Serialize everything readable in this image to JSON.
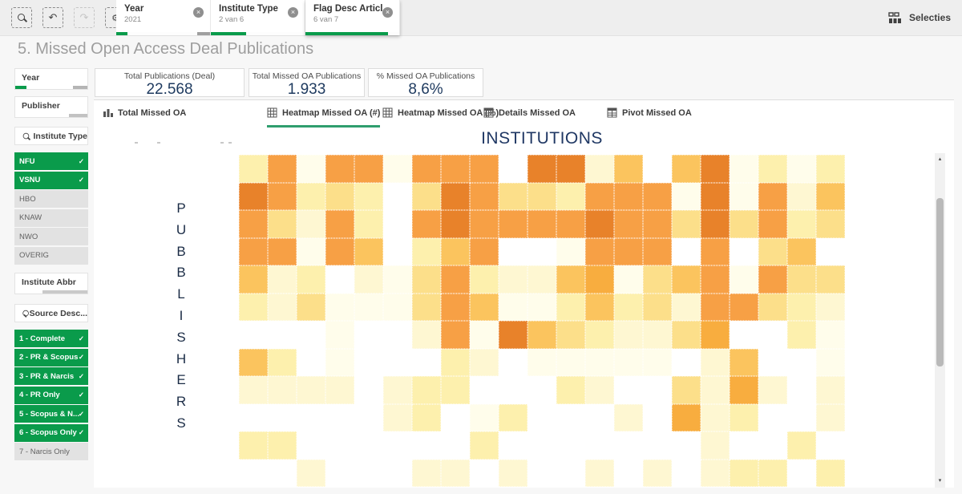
{
  "topbar": {
    "selections_label": "Selecties",
    "chips": [
      {
        "title": "Year",
        "subtitle": "2021",
        "green_pct": 12,
        "tail_pct": 14
      },
      {
        "title": "Institute Type",
        "subtitle": "2 van 6",
        "green_pct": 38,
        "tail_pct": 0
      },
      {
        "title": "Flag Desc Articl...",
        "subtitle": "6 van 7",
        "green_pct": 88,
        "tail_pct": 0
      }
    ]
  },
  "page": {
    "title": "5. Missed Open Access Deal Publications"
  },
  "kpis": [
    {
      "label": "Total Publications (Deal)",
      "value": "22.568"
    },
    {
      "label": "Total Missed OA Publications",
      "value": "1.933"
    },
    {
      "label": "% Missed OA Publications",
      "value": "8,6%"
    }
  ],
  "sidebar": {
    "year": {
      "label": "Year"
    },
    "publisher": {
      "label": "Publisher"
    },
    "institute_type": {
      "label": "Institute Type",
      "items": [
        {
          "label": "NFU",
          "selected": true
        },
        {
          "label": "VSNU",
          "selected": true
        },
        {
          "label": "HBO",
          "selected": false
        },
        {
          "label": "KNAW",
          "selected": false
        },
        {
          "label": "NWO",
          "selected": false
        },
        {
          "label": "OVERIG",
          "selected": false
        }
      ]
    },
    "institute_abbr": {
      "label": "Institute Abbr"
    },
    "source_desc": {
      "label": "Source Desc...",
      "items": [
        {
          "label": "1 - Complete",
          "selected": true
        },
        {
          "label": "2 - PR & Scopus",
          "selected": true
        },
        {
          "label": "3 - PR & Narcis",
          "selected": true
        },
        {
          "label": "4 - PR Only",
          "selected": true
        },
        {
          "label": "5 - Scopus & N...",
          "selected": true
        },
        {
          "label": "6 - Scopus Only",
          "selected": true
        },
        {
          "label": "7 - Narcis Only",
          "selected": false
        }
      ]
    }
  },
  "tabs": [
    {
      "label": "Total Missed OA",
      "icon": "bar-chart-icon",
      "active": false
    },
    {
      "label": "Heatmap Missed OA (#)",
      "icon": "grid-icon",
      "active": true
    },
    {
      "label": "Heatmap Missed OA (%)",
      "icon": "grid-icon",
      "active": false
    },
    {
      "label": "Details Missed OA",
      "icon": "table-icon",
      "active": false
    },
    {
      "label": "Pivot Missed OA",
      "icon": "table-icon",
      "active": false
    }
  ],
  "chart_data": {
    "type": "heatmap",
    "title": "Heatmap Missed OA (#)",
    "xlabel": "INSTITUTIONS",
    "ylabel": "PUBBLISHERS",
    "rows": 12,
    "cols": 21,
    "legend": "cell color encodes number of missed OA publications; w = no data (white)",
    "palette": {
      "w": "",
      "a": "#fffdeb",
      "b": "#fef7d2",
      "c": "#fdf0ad",
      "e": "#fcdf8a",
      "f": "#fbc45e",
      "g": "#f8ad3f",
      "h": "#f7a045",
      "i": "#e8822a"
    },
    "cells": [
      "chahhahhhwiibfwfiacac",
      "ihcecweiheechhhaiahbf",
      "hebhcwhihhhhihheiehce",
      "hhahfwcfhwwahhhwhwefw",
      "fbcwbaehcbbfgaefhahee",
      "cbeaaaehfaacfcebhhecb",
      "wwwawwbhaifecbbegwwca",
      "fcwawwwcbwaaaaawbfwwa",
      "bbbbwbccwwwcbwwebgbwb",
      "wwwwwbcwacwwwbwgbcwwb",
      "ccwwwwwwcwwwwwwwbwwcw",
      "wwbwwwbbwbwwbwbwbccwc"
    ]
  },
  "icons": {
    "close": "×",
    "check": "✓",
    "undo": "↶",
    "redo": "↷",
    "gear": "⚙",
    "scroll_up": "▴",
    "scroll_down": "▾"
  },
  "colors": {
    "accent_green": "#0a9b4b",
    "tab_underline": "#2f9e6e",
    "kpi_value_navy": "#1e3a5f",
    "heatmap_dark_orange": "#e8822a"
  }
}
